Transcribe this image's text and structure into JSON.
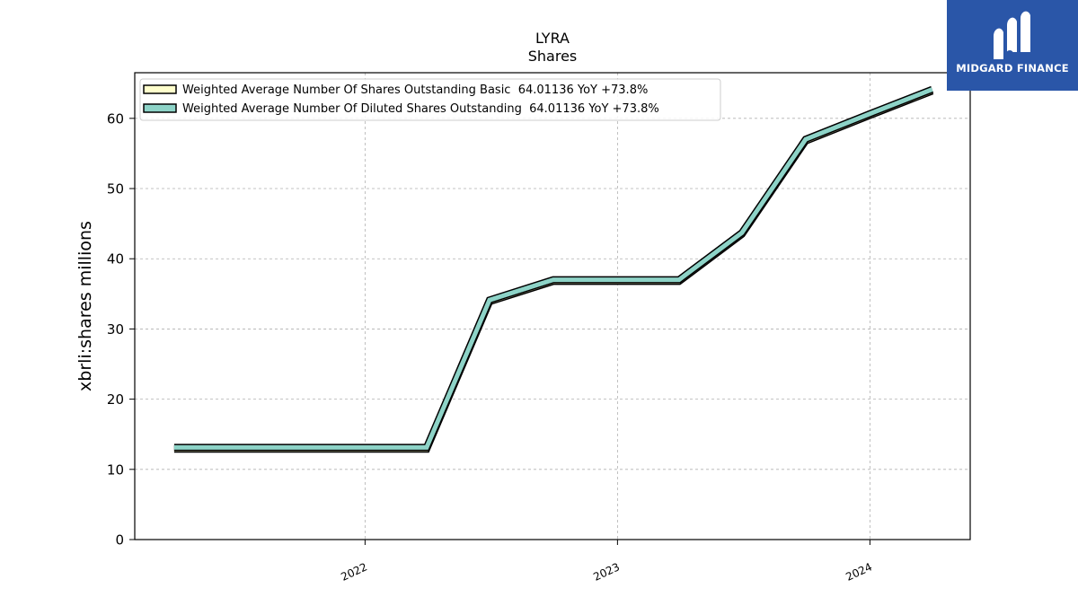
{
  "brand": {
    "name": "MIDGARD FINANCE",
    "bg_color": "#2a56a8"
  },
  "chart_data": {
    "type": "line",
    "title": "LYRA",
    "subtitle": "Shares",
    "ylabel": "xbrli:shares millions",
    "xlabel": "",
    "xlim": [
      "2021-02-02",
      "2024-05-25"
    ],
    "ylim": [
      0,
      66.5
    ],
    "y_ticks": [
      0,
      10,
      20,
      30,
      40,
      50,
      60
    ],
    "x_ticks": [
      {
        "date": "2022-01-01",
        "label": "2022"
      },
      {
        "date": "2023-01-01",
        "label": "2023"
      },
      {
        "date": "2024-01-01",
        "label": "2024"
      }
    ],
    "grid": true,
    "legend_position": "top-left",
    "series": [
      {
        "name": "Weighted Average Number Of Shares Outstanding Basic  64.01136 YoY +73.8%",
        "color": "#ffffcc",
        "x": [
          "2021-03-31",
          "2021-06-30",
          "2021-09-30",
          "2021-12-31",
          "2022-03-31",
          "2022-06-30",
          "2022-09-30",
          "2022-12-31",
          "2023-03-31",
          "2023-06-30",
          "2023-09-30",
          "2023-12-31",
          "2024-03-31"
        ],
        "y": [
          13.0,
          13.0,
          13.0,
          13.0,
          13.0,
          34.0,
          36.9,
          36.9,
          36.9,
          43.6,
          56.9,
          60.5,
          64.0
        ]
      },
      {
        "name": "Weighted Average Number Of Diluted Shares Outstanding  64.01136 YoY +73.8%",
        "color": "#8dd3c7",
        "x": [
          "2021-03-31",
          "2021-06-30",
          "2021-09-30",
          "2021-12-31",
          "2022-03-31",
          "2022-06-30",
          "2022-09-30",
          "2022-12-31",
          "2023-03-31",
          "2023-06-30",
          "2023-09-30",
          "2023-12-31",
          "2024-03-31"
        ],
        "y": [
          13.0,
          13.0,
          13.0,
          13.0,
          13.0,
          34.0,
          36.9,
          36.9,
          36.9,
          43.6,
          56.9,
          60.5,
          64.0
        ]
      }
    ]
  }
}
